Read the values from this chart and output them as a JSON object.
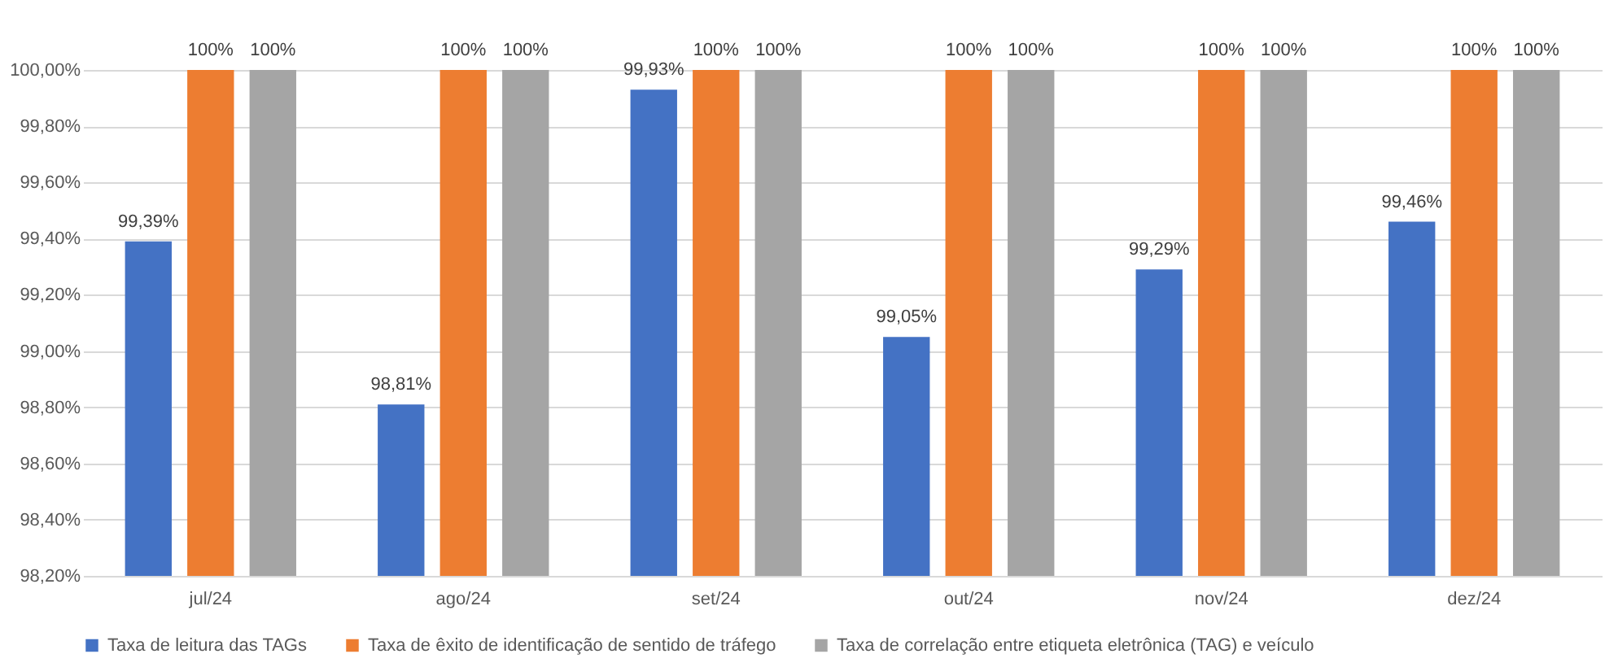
{
  "chart_data": {
    "type": "bar",
    "categories": [
      "jul/24",
      "ago/24",
      "set/24",
      "out/24",
      "nov/24",
      "dez/24"
    ],
    "series": [
      {
        "name": "Taxa de leitura das TAGs",
        "color": "#4472c4",
        "values": [
          99.39,
          98.81,
          99.93,
          99.05,
          99.29,
          99.46
        ],
        "value_labels": [
          "99,39%",
          "98,81%",
          "99,93%",
          "99,05%",
          "99,29%",
          "99,46%"
        ]
      },
      {
        "name": "Taxa de êxito de identificação de sentido de tráfego",
        "color": "#ed7d31",
        "values": [
          100,
          100,
          100,
          100,
          100,
          100
        ],
        "value_labels": [
          "100%",
          "100%",
          "100%",
          "100%",
          "100%",
          "100%"
        ]
      },
      {
        "name": "Taxa de correlação entre etiqueta eletrônica (TAG) e veículo",
        "color": "#a5a5a5",
        "values": [
          100,
          100,
          100,
          100,
          100,
          100
        ],
        "value_labels": [
          "100%",
          "100%",
          "100%",
          "100%",
          "100%",
          "100%"
        ]
      }
    ],
    "ylim": [
      98.2,
      100
    ],
    "yticks": [
      {
        "value": 98.2,
        "label": "98,20%"
      },
      {
        "value": 98.4,
        "label": "98,40%"
      },
      {
        "value": 98.6,
        "label": "98,60%"
      },
      {
        "value": 98.8,
        "label": "98,80%"
      },
      {
        "value": 99.0,
        "label": "99,00%"
      },
      {
        "value": 99.2,
        "label": "99,20%"
      },
      {
        "value": 99.4,
        "label": "99,40%"
      },
      {
        "value": 99.6,
        "label": "99,60%"
      },
      {
        "value": 99.8,
        "label": "99,80%"
      },
      {
        "value": 100.0,
        "label": "100,00%"
      }
    ],
    "grid": "y",
    "legend": "bottom"
  }
}
